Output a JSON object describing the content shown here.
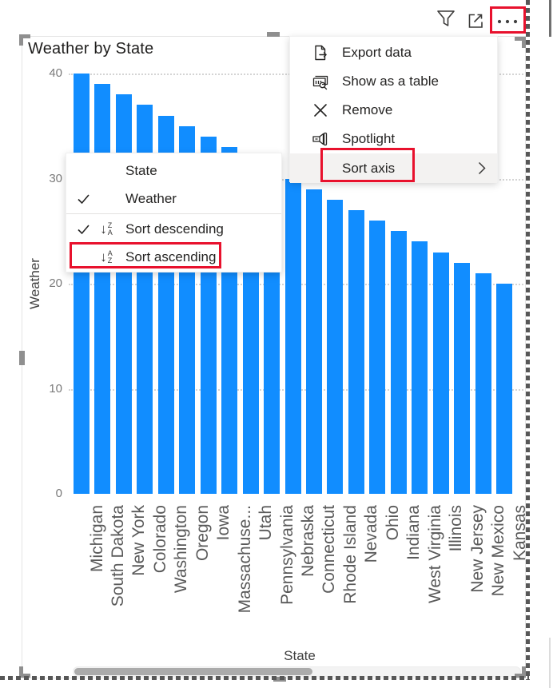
{
  "colors": {
    "bar": "#118DFF",
    "highlight_red": "#E8112D",
    "menu_hover": "#F3F2F1",
    "handle": "#8F8F8F"
  },
  "toolbar": {
    "icons": [
      {
        "name": "filter"
      },
      {
        "name": "focus-mode"
      },
      {
        "name": "more-options"
      }
    ]
  },
  "chart_data": {
    "type": "bar",
    "title": "Weather by State",
    "xlabel": "State",
    "ylabel": "Weather",
    "categories": [
      "Michigan",
      "South Dakota",
      "New York",
      "Colorado",
      "Washington",
      "Oregon",
      "Iowa",
      "Massachuse...",
      "Utah",
      "Pennsylvania",
      "Nebraska",
      "Connecticut",
      "Rhode Island",
      "Nevada",
      "Ohio",
      "Indiana",
      "West Virginia",
      "Illinois",
      "New Jersey",
      "New Mexico",
      "Kansas"
    ],
    "values": [
      40,
      39,
      38,
      37,
      36,
      35,
      34,
      33,
      32,
      31,
      30,
      29,
      28,
      27,
      26,
      25,
      24,
      23,
      22,
      21,
      20
    ],
    "ylim": [
      0,
      40
    ],
    "yticks": [
      0,
      10,
      20,
      30,
      40
    ],
    "grid": "dotted-horizontal",
    "legend": "none",
    "bar_color": "#118DFF",
    "sort": "descending by Weather"
  },
  "menu": {
    "items": [
      {
        "label": "Export data",
        "icon": "export-data-icon",
        "highlighted": false
      },
      {
        "label": "Show as a table",
        "icon": "show-as-table-icon",
        "highlighted": false
      },
      {
        "label": "Remove",
        "icon": "remove-icon",
        "highlighted": false
      },
      {
        "label": "Spotlight",
        "icon": "spotlight-icon",
        "highlighted": false
      },
      {
        "label": "Sort axis",
        "icon": null,
        "highlighted": true,
        "has_submenu": true
      }
    ]
  },
  "submenu": {
    "items": [
      {
        "label": "State",
        "checked": false,
        "icon": null
      },
      {
        "label": "Weather",
        "checked": true,
        "icon": null
      },
      {
        "label": "Sort descending",
        "checked": true,
        "icon": "sort-descending-icon"
      },
      {
        "label": "Sort ascending",
        "checked": false,
        "icon": "sort-ascending-icon"
      }
    ]
  }
}
